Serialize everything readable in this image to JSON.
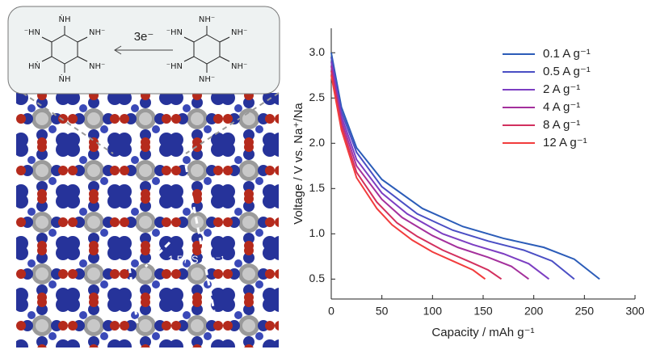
{
  "illustration": {
    "left_molecule": [
      "ṄH",
      "⁻HN",
      "NH⁻",
      "HṄ",
      "ṄH",
      "NH⁻"
    ],
    "right_molecule": [
      "NH⁻",
      "⁻HN",
      "NH⁻",
      "⁻HN",
      "NH⁻",
      "NH⁻"
    ],
    "reaction": "3e⁻",
    "electron": "e⁻",
    "conductivity": "1.57 S cm⁻¹"
  },
  "chart_data": {
    "type": "line",
    "xlabel": "Capacity / mAh g⁻¹",
    "ylabel": "Voltage / V vs. Na⁺/Na",
    "xlim": [
      0,
      300
    ],
    "xticks": [
      0,
      50,
      100,
      150,
      200,
      250,
      300
    ],
    "ylim": [
      0.28,
      3.27
    ],
    "yticks": [
      0.5,
      {
        "value": 1,
        "label": "1.0"
      },
      1.5,
      {
        "value": 2,
        "label": "2.0"
      },
      2.5,
      {
        "value": 3,
        "label": "3.0"
      }
    ],
    "legend": "upper-right",
    "series": [
      {
        "name": "0.1 A g⁻¹",
        "color": "#2b5cb8",
        "x": [
          0,
          10,
          25,
          50,
          90,
          130,
          170,
          210,
          240,
          265
        ],
        "values": [
          3.0,
          2.4,
          1.95,
          1.6,
          1.28,
          1.08,
          0.95,
          0.85,
          0.72,
          0.5
        ]
      },
      {
        "name": "0.5 A g⁻¹",
        "color": "#4a4ec4",
        "x": [
          0,
          10,
          25,
          50,
          85,
          120,
          155,
          190,
          218,
          240
        ],
        "values": [
          2.95,
          2.35,
          1.9,
          1.52,
          1.22,
          1.04,
          0.92,
          0.82,
          0.7,
          0.5
        ]
      },
      {
        "name": "2 A g⁻¹",
        "color": "#7c3ec2",
        "x": [
          0,
          10,
          25,
          50,
          75,
          110,
          140,
          170,
          195,
          215
        ],
        "values": [
          2.9,
          2.3,
          1.82,
          1.45,
          1.22,
          1.0,
          0.88,
          0.78,
          0.67,
          0.5
        ]
      },
      {
        "name": "4 A g⁻¹",
        "color": "#a4309c",
        "x": [
          0,
          10,
          25,
          50,
          70,
          100,
          125,
          155,
          178,
          195
        ],
        "values": [
          2.85,
          2.25,
          1.75,
          1.38,
          1.18,
          0.98,
          0.85,
          0.74,
          0.64,
          0.5
        ]
      },
      {
        "name": "8 A g⁻¹",
        "color": "#d2305e",
        "x": [
          0,
          10,
          25,
          45,
          65,
          85,
          110,
          135,
          155,
          168
        ],
        "values": [
          2.8,
          2.2,
          1.68,
          1.35,
          1.12,
          0.97,
          0.82,
          0.7,
          0.6,
          0.5
        ]
      },
      {
        "name": "12 A g⁻¹",
        "color": "#f23c3c",
        "x": [
          0,
          10,
          25,
          45,
          60,
          80,
          100,
          120,
          140,
          152
        ],
        "values": [
          2.75,
          2.15,
          1.62,
          1.28,
          1.1,
          0.93,
          0.8,
          0.7,
          0.6,
          0.5
        ]
      }
    ]
  }
}
